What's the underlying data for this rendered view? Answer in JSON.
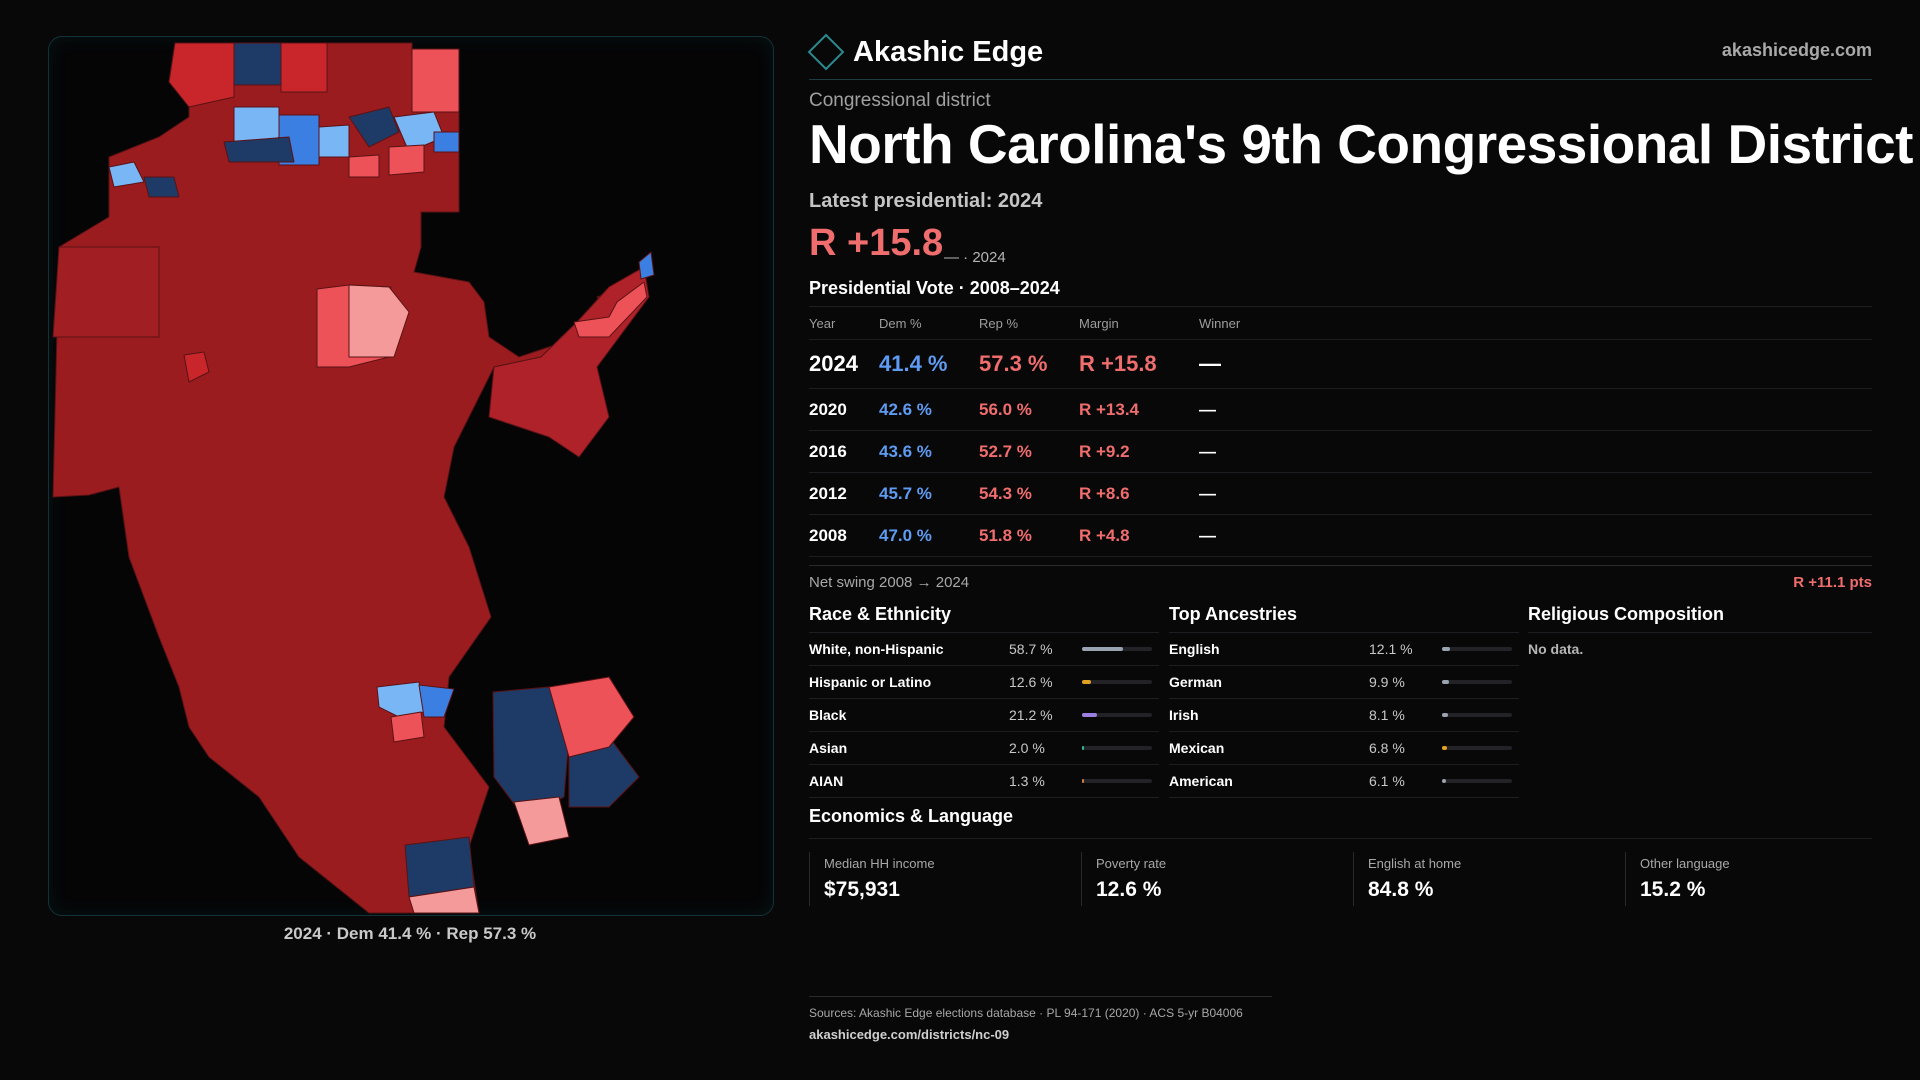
{
  "brand": {
    "name": "Akashic Edge",
    "site": "akashicedge.com"
  },
  "header": {
    "eyebrow": "Congressional district",
    "title": "North Carolina's 9th Congressional District",
    "latest_label": "Latest presidential: 2024",
    "big_margin": "R +15.8",
    "big_margin_sub": "— · 2024"
  },
  "presidential": {
    "title": "Presidential Vote · 2008–2024",
    "columns": [
      "Year",
      "Dem %",
      "Rep %",
      "Margin",
      "Winner"
    ],
    "rows": [
      {
        "year": "2024",
        "dem": "41.4 %",
        "rep": "57.3 %",
        "margin": "R +15.8",
        "winner": "—"
      },
      {
        "year": "2020",
        "dem": "42.6 %",
        "rep": "56.0 %",
        "margin": "R +13.4",
        "winner": "—"
      },
      {
        "year": "2016",
        "dem": "43.6 %",
        "rep": "52.7 %",
        "margin": "R +9.2",
        "winner": "—"
      },
      {
        "year": "2012",
        "dem": "45.7 %",
        "rep": "54.3 %",
        "margin": "R +8.6",
        "winner": "—"
      },
      {
        "year": "2008",
        "dem": "47.0 %",
        "rep": "51.8 %",
        "margin": "R +4.8",
        "winner": "—"
      }
    ],
    "swing_label": "Net swing 2008 → 2024",
    "swing_value": "R +11.1 pts"
  },
  "race": {
    "title": "Race & Ethnicity",
    "items": [
      {
        "label": "White, non-Hispanic",
        "pct": "58.7 %",
        "share": 0.587,
        "color": "#9aa3b0"
      },
      {
        "label": "Hispanic or Latino",
        "pct": "12.6 %",
        "share": 0.126,
        "color": "#e0a020"
      },
      {
        "label": "Black",
        "pct": "21.2 %",
        "share": 0.212,
        "color": "#9a7fe0"
      },
      {
        "label": "Asian",
        "pct": "2.0 %",
        "share": 0.02,
        "color": "#2fb8a0"
      },
      {
        "label": "AIAN",
        "pct": "1.3 %",
        "share": 0.013,
        "color": "#d08040"
      }
    ]
  },
  "ancestry": {
    "title": "Top Ancestries",
    "items": [
      {
        "label": "English",
        "pct": "12.1 %",
        "share": 0.121,
        "color": "#9aa3b0"
      },
      {
        "label": "German",
        "pct": "9.9 %",
        "share": 0.099,
        "color": "#9aa3b0"
      },
      {
        "label": "Irish",
        "pct": "8.1 %",
        "share": 0.081,
        "color": "#9aa3b0"
      },
      {
        "label": "Mexican",
        "pct": "6.8 %",
        "share": 0.068,
        "color": "#e0a020"
      },
      {
        "label": "American",
        "pct": "6.1 %",
        "share": 0.061,
        "color": "#9aa3b0"
      }
    ]
  },
  "religion": {
    "title": "Religious Composition",
    "empty": "No data."
  },
  "economics": {
    "title": "Economics & Language",
    "items": [
      {
        "label": "Median HH income",
        "value": "$75,931"
      },
      {
        "label": "Poverty rate",
        "value": "12.6 %"
      },
      {
        "label": "English at home",
        "value": "84.8 %"
      },
      {
        "label": "Other language",
        "value": "15.2 %"
      }
    ]
  },
  "map": {
    "caption": "2024 · Dem 41.4 % · Rep 57.3 %"
  },
  "colors": {
    "strong_rep": "#9b1c1f",
    "mid_rep": "#c9262b",
    "light_rep": "#ec5257",
    "pale_rep": "#f49a9a",
    "strong_dem": "#1e3a66",
    "mid_dem": "#3b7fe3",
    "light_dem": "#79b6f6"
  },
  "sources": {
    "line1": "Sources: Akashic Edge elections database · PL 94-171 (2020) · ACS 5-yr B04006",
    "line2": "akashicedge.com/districts/nc-09"
  }
}
